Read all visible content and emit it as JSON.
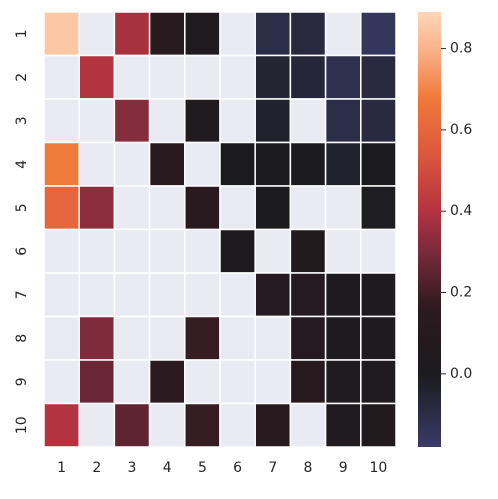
{
  "chart_data": {
    "type": "heatmap",
    "title": "",
    "xlabel": "",
    "ylabel": "",
    "x_categories": [
      "1",
      "2",
      "3",
      "4",
      "5",
      "6",
      "7",
      "8",
      "9",
      "10"
    ],
    "y_categories": [
      "1",
      "2",
      "3",
      "4",
      "5",
      "6",
      "7",
      "8",
      "9",
      "10"
    ],
    "values": [
      [
        0.85,
        null,
        0.38,
        0.14,
        0.04,
        null,
        -0.1,
        -0.08,
        null,
        -0.15
      ],
      [
        null,
        0.4,
        null,
        null,
        null,
        null,
        -0.05,
        -0.06,
        -0.12,
        -0.08
      ],
      [
        null,
        null,
        0.32,
        null,
        0.05,
        null,
        -0.04,
        null,
        -0.1,
        -0.08
      ],
      [
        0.68,
        null,
        null,
        0.14,
        null,
        0.0,
        0.0,
        0.01,
        -0.04,
        0.0
      ],
      [
        0.6,
        0.33,
        null,
        null,
        0.13,
        null,
        0.01,
        null,
        null,
        -0.01
      ],
      [
        null,
        null,
        null,
        null,
        null,
        0.03,
        null,
        0.07,
        null,
        null
      ],
      [
        null,
        null,
        null,
        null,
        null,
        null,
        0.1,
        0.09,
        0.03,
        0.03
      ],
      [
        null,
        0.31,
        null,
        null,
        0.18,
        null,
        null,
        0.1,
        0.03,
        0.02
      ],
      [
        null,
        0.27,
        null,
        0.16,
        null,
        null,
        null,
        0.11,
        0.05,
        0.05
      ],
      [
        0.4,
        null,
        0.25,
        null,
        0.18,
        null,
        0.13,
        null,
        0.05,
        0.06
      ]
    ],
    "missing_color": "#eaeaf2",
    "colorbar": {
      "min": -0.18,
      "max": 0.89,
      "ticks": [
        0.0,
        0.2,
        0.4,
        0.6,
        0.8
      ],
      "tick_labels": [
        "0.0",
        "0.2",
        "0.4",
        "0.6",
        "0.8"
      ],
      "colormap_stops": [
        {
          "value": -0.18,
          "color": "#3a3b68"
        },
        {
          "value": 0.0,
          "color": "#1b1b1e"
        },
        {
          "value": 0.16,
          "color": "#2b1a1f"
        },
        {
          "value": 0.3,
          "color": "#7a2a3c"
        },
        {
          "value": 0.4,
          "color": "#b33340"
        },
        {
          "value": 0.55,
          "color": "#de5a3d"
        },
        {
          "value": 0.68,
          "color": "#f07a3a"
        },
        {
          "value": 0.8,
          "color": "#fab38c"
        },
        {
          "value": 0.89,
          "color": "#fdd8b8"
        }
      ]
    },
    "grid": true
  }
}
